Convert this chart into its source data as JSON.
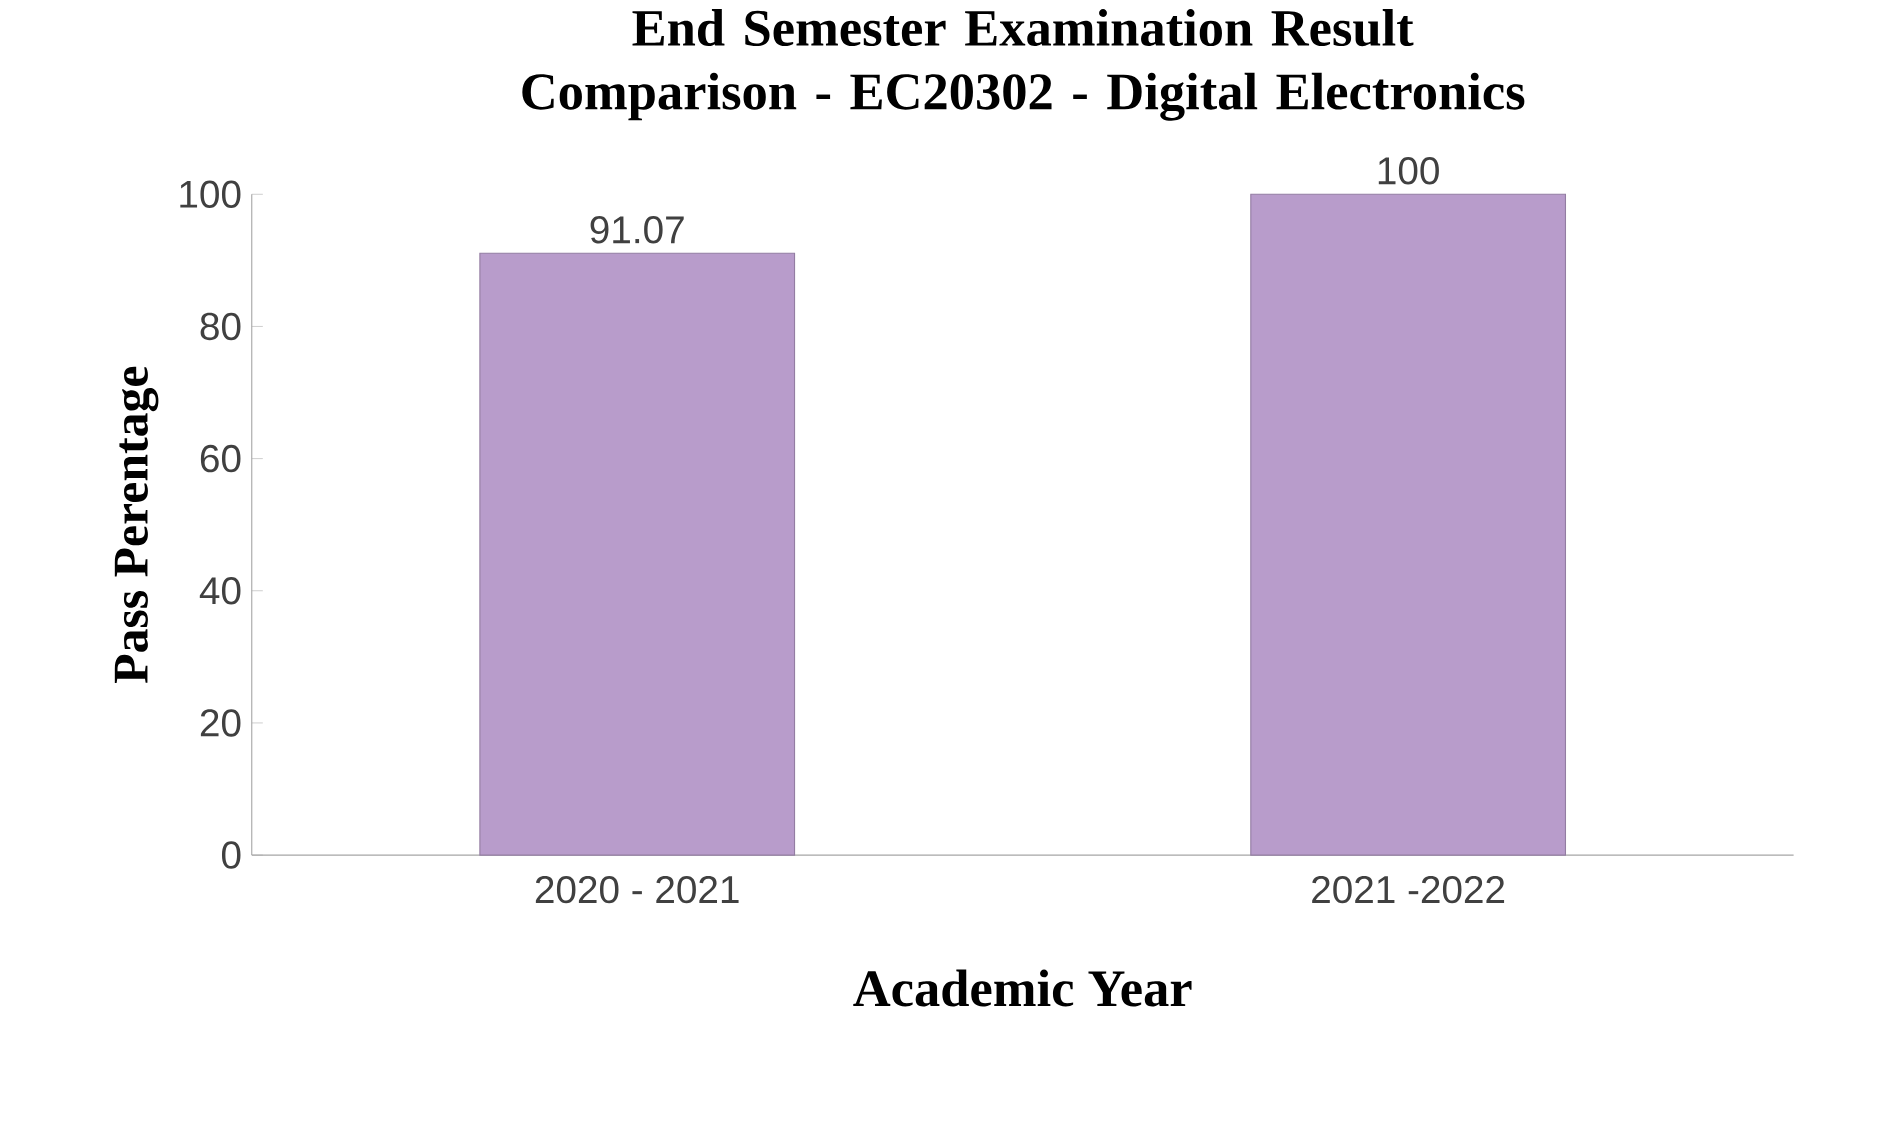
{
  "chart_data": {
    "type": "bar",
    "title": "End Semester Examination Result Comparison - EC20302 - Digital Electronics",
    "xlabel": "Academic Year",
    "ylabel": "Pass Perentage",
    "categories": [
      "2020 - 2021",
      "2021 -2022"
    ],
    "values": [
      91.07,
      100
    ],
    "color": "#b89ccb",
    "ylim": [
      0,
      100
    ],
    "yticks": [
      0,
      20,
      40,
      60,
      80,
      100
    ],
    "data_labels": true,
    "grid": false
  }
}
